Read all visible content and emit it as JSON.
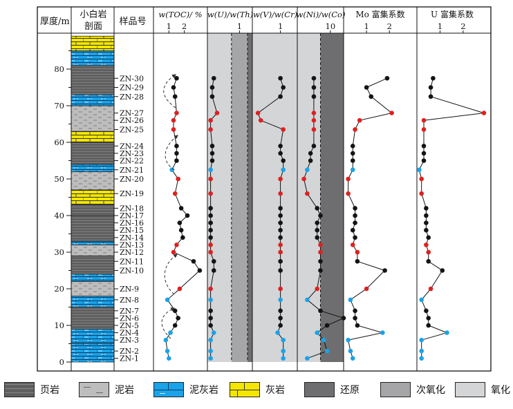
{
  "headers": {
    "depth": "厚度/m",
    "section": "小白岩\n剖面",
    "sample": "样品号",
    "toc": "w(TOC)/ %",
    "u_th": "w(U)/w(Th)",
    "v_cr": "w(V)/w(Cr)",
    "ni_co": "w(Ni)/w(Co)",
    "mo_ef": "Mo 富集系数",
    "u_ef": "U 富集系数"
  },
  "depth_ticks": [
    "0",
    "10",
    "20",
    "30",
    "40",
    "50",
    "60",
    "70",
    "80"
  ],
  "samples": [
    "ZN-1",
    "ZN-2",
    "ZN-3",
    "ZN-4",
    "ZN-5",
    "ZN-6",
    "ZN-7",
    "ZN-8",
    "ZN-9",
    "ZN-10",
    "ZN-11",
    "ZN-12",
    "ZN-13",
    "ZN-14",
    "ZN-15",
    "ZN-16",
    "ZN-17",
    "ZN-18",
    "ZN-19",
    "ZN-20",
    "ZN-21",
    "ZN-22",
    "ZN-23",
    "ZN-24",
    "ZN-25",
    "ZN-26",
    "ZN-27",
    "ZN-28",
    "ZN-29",
    "ZN-30"
  ],
  "legend": [
    {
      "label": "页岩",
      "pattern": "shale"
    },
    {
      "label": "泥岩",
      "pattern": "mudstone"
    },
    {
      "label": "泥灰岩",
      "pattern": "marl"
    },
    {
      "label": "灰岩",
      "pattern": "limestone"
    },
    {
      "label": "还原",
      "pattern": "reducing"
    },
    {
      "label": "次氧化",
      "pattern": "suboxic"
    },
    {
      "label": "氧化",
      "pattern": "oxic"
    }
  ],
  "colors": {
    "shale": "#5f5f5f",
    "mudstone": "#bdbdbd",
    "marl": "#1aa3e8",
    "limestone": "#f5e600",
    "reducing": "#6e6e70",
    "suboxic": "#a6a6a8",
    "oxic": "#d4d5d7",
    "pt_black": "#141414",
    "pt_red": "#e02020",
    "pt_blue": "#1aa3e8"
  },
  "chart_data": {
    "type": "line",
    "depth_label": "厚度/m",
    "depth_range": [
      0,
      90
    ],
    "sample_depths": [
      1,
      3,
      6,
      8,
      10,
      12,
      14,
      17,
      20,
      25,
      27.5,
      30,
      32,
      34,
      36,
      38,
      40,
      42,
      46,
      50,
      52.5,
      55,
      57,
      59,
      63.5,
      66,
      68,
      72.5,
      75,
      77.5
    ],
    "point_colors": [
      "blue",
      "blue",
      "blue",
      "blue",
      "black",
      "black",
      "black",
      "blue",
      "red",
      "black",
      "black",
      "red",
      "red",
      "black",
      "black",
      "black",
      "black",
      "black",
      "red",
      "red",
      "blue",
      "black",
      "black",
      "black",
      "red",
      "red",
      "red",
      "black",
      "black",
      "black"
    ],
    "lithology": [
      {
        "from": 0,
        "to": 5,
        "type": "marl"
      },
      {
        "from": 5,
        "to": 9,
        "type": "marl"
      },
      {
        "from": 9,
        "to": 15,
        "type": "shale"
      },
      {
        "from": 15,
        "to": 18,
        "type": "marl"
      },
      {
        "from": 18,
        "to": 22,
        "type": "mudstone"
      },
      {
        "from": 22,
        "to": 24,
        "type": "marl"
      },
      {
        "from": 24,
        "to": 29,
        "type": "shale"
      },
      {
        "from": 29,
        "to": 32,
        "type": "mudstone"
      },
      {
        "from": 32,
        "to": 33,
        "type": "marl"
      },
      {
        "from": 33,
        "to": 40,
        "type": "shale"
      },
      {
        "from": 40,
        "to": 43,
        "type": "shale"
      },
      {
        "from": 43,
        "to": 47,
        "type": "limestone"
      },
      {
        "from": 47,
        "to": 52,
        "type": "mudstone"
      },
      {
        "from": 52,
        "to": 54,
        "type": "marl"
      },
      {
        "from": 54,
        "to": 60,
        "type": "shale"
      },
      {
        "from": 60,
        "to": 63,
        "type": "limestone"
      },
      {
        "from": 63,
        "to": 70,
        "type": "mudstone"
      },
      {
        "from": 70,
        "to": 73,
        "type": "marl"
      },
      {
        "from": 73,
        "to": 81,
        "type": "shale"
      },
      {
        "from": 81,
        "to": 85,
        "type": "marl"
      },
      {
        "from": 85,
        "to": 89,
        "type": "limestone"
      }
    ],
    "panels": [
      {
        "key": "toc",
        "xlabel": "w(TOC)/ %",
        "ticks": [
          "1",
          "2"
        ],
        "tick_values": [
          1,
          2
        ],
        "xlim": [
          0,
          3.5
        ],
        "values": [
          1.0,
          0.9,
          0.8,
          1.1,
          1.4,
          1.6,
          1.4,
          0.9,
          1.7,
          3.0,
          2.6,
          1.3,
          1.5,
          1.9,
          1.8,
          1.7,
          2.2,
          1.8,
          1.4,
          1.6,
          1.2,
          1.5,
          1.5,
          1.5,
          1.3,
          1.3,
          1.5,
          1.4,
          1.3,
          1.5
        ],
        "zones": []
      },
      {
        "key": "u_th",
        "xlabel": "w(U)/w(Th)",
        "ticks": [
          "1"
        ],
        "tick_values": [
          1
        ],
        "xlim": [
          0,
          1.4
        ],
        "values": [
          0.1,
          0.1,
          0.1,
          0.2,
          0.1,
          0.1,
          0.1,
          0.1,
          0.1,
          0.2,
          0.2,
          0.1,
          0.1,
          0.1,
          0.1,
          0.1,
          0.1,
          0.1,
          0.1,
          0.1,
          0.1,
          0.15,
          0.15,
          0.15,
          0.1,
          0.1,
          0.3,
          0.15,
          0.15,
          0.2
        ],
        "zones": [
          {
            "from": 0,
            "to": 0.75,
            "zone": "oxic"
          },
          {
            "from": 0.75,
            "to": 1.25,
            "zone": "suboxic"
          },
          {
            "from": 1.25,
            "to": 1.4,
            "zone": "reducing"
          }
        ],
        "dashed": [
          0.75,
          1.25
        ]
      },
      {
        "key": "v_cr",
        "xlabel": "w(V)/w(Cr)",
        "ticks": [
          "1"
        ],
        "tick_values": [
          1
        ],
        "xlim": [
          0,
          1.6
        ],
        "values": [
          1.1,
          1.1,
          1.1,
          0.9,
          1.0,
          1.0,
          1.0,
          1.0,
          1.0,
          1.0,
          1.0,
          1.0,
          1.0,
          1.0,
          1.0,
          1.0,
          1.0,
          1.0,
          1.0,
          1.0,
          1.1,
          1.1,
          1.0,
          1.0,
          1.1,
          0.3,
          0.2,
          1.0,
          1.1,
          1.0
        ],
        "zones": [
          {
            "from": 0,
            "to": 1.6,
            "zone": "oxic"
          }
        ]
      },
      {
        "key": "ni_co",
        "xlabel": "w(Ni)/w(Co)",
        "ticks": [
          "10"
        ],
        "tick_values": [
          10
        ],
        "xlim": [
          0,
          14
        ],
        "values": [
          3,
          9,
          8,
          6,
          9,
          14,
          7,
          3,
          6,
          7,
          7,
          7,
          7,
          6,
          6,
          6,
          7,
          6,
          3,
          2,
          3,
          4,
          4,
          5,
          5,
          5,
          5,
          5,
          5,
          5
        ],
        "zones": [
          {
            "from": 0,
            "to": 7,
            "zone": "oxic"
          },
          {
            "from": 7,
            "to": 14,
            "zone": "reducing"
          }
        ],
        "dashed": [
          7
        ]
      },
      {
        "key": "mo_ef",
        "xlabel": "Mo 富集系数",
        "ticks": [
          "1",
          "2"
        ],
        "tick_values": [
          1,
          2
        ],
        "xlim": [
          0,
          3.2
        ],
        "values": [
          0.4,
          0.3,
          0.2,
          1.7,
          0.6,
          0.5,
          0.5,
          0.3,
          1.0,
          1.8,
          0.6,
          0.6,
          0.4,
          0.5,
          0.4,
          0.5,
          0.5,
          0.5,
          0.2,
          0.2,
          0.4,
          0.4,
          0.4,
          0.4,
          0.5,
          0.7,
          2.1,
          1.2,
          1.0,
          1.9
        ],
        "zones": []
      },
      {
        "key": "u_ef",
        "xlabel": "U 富集系数",
        "ticks": [
          "1",
          "2"
        ],
        "tick_values": [
          1,
          2
        ],
        "xlim": [
          0,
          3.2
        ],
        "values": [
          0.2,
          0.2,
          0.2,
          1.3,
          0.5,
          0.5,
          0.4,
          0.2,
          0.6,
          1.1,
          0.5,
          0.5,
          0.4,
          0.5,
          0.4,
          0.4,
          0.4,
          0.4,
          0.2,
          0.2,
          0.1,
          0.3,
          0.3,
          0.3,
          0.3,
          0.3,
          2.9,
          0.6,
          0.6,
          0.7
        ],
        "zones": []
      }
    ]
  }
}
